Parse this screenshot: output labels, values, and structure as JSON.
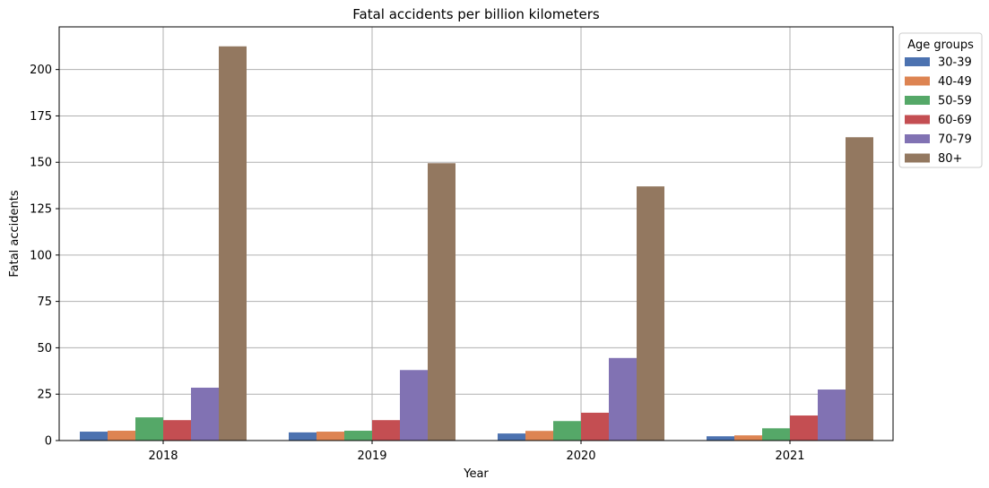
{
  "chart_data": {
    "type": "bar",
    "title": "Fatal accidents per billion kilometers",
    "xlabel": "Year",
    "ylabel": "Fatal accidents",
    "categories": [
      "2018",
      "2019",
      "2020",
      "2021"
    ],
    "ylim": [
      0,
      223
    ],
    "yticks": [
      0,
      25,
      50,
      75,
      100,
      125,
      150,
      175,
      200
    ],
    "grid": true,
    "legend": {
      "title": "Age groups",
      "placement": "outside-top-right"
    },
    "series": [
      {
        "name": "30-39",
        "color": "#4c72b0",
        "values": [
          4.8,
          4.4,
          3.8,
          2.3
        ]
      },
      {
        "name": "40-49",
        "color": "#dd8452",
        "values": [
          5.3,
          4.8,
          5.2,
          2.8
        ]
      },
      {
        "name": "50-59",
        "color": "#55a868",
        "values": [
          12.5,
          5.3,
          10.5,
          6.6
        ]
      },
      {
        "name": "60-69",
        "color": "#c44e52",
        "values": [
          11.0,
          11.0,
          15.0,
          13.5
        ]
      },
      {
        "name": "70-79",
        "color": "#8172b3",
        "values": [
          28.5,
          38.0,
          44.5,
          27.5
        ]
      },
      {
        "name": "80+",
        "color": "#937860",
        "values": [
          212.5,
          149.5,
          137.0,
          163.5
        ]
      }
    ]
  }
}
